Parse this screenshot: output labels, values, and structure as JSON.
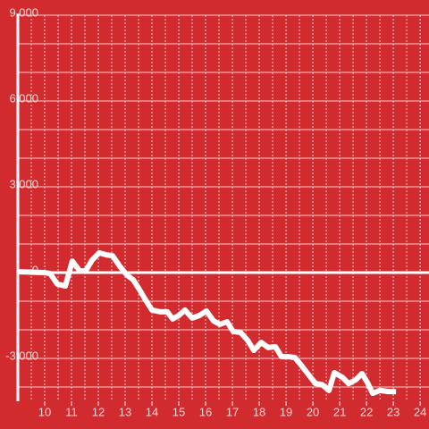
{
  "chart_data": {
    "type": "line",
    "xlim": [
      9,
      24.33
    ],
    "ylim": [
      -4500,
      9000
    ],
    "xticks": [
      10,
      11,
      12,
      13,
      14,
      15,
      16,
      17,
      18,
      19,
      20,
      21,
      22,
      23,
      24
    ],
    "yticks": [
      {
        "value": -3000,
        "label": "-3,000"
      },
      0,
      {
        "value": 3000,
        "label": "3,000"
      },
      {
        "value": 6000,
        "label": "6,000"
      },
      {
        "value": 9000,
        "label": "9,000"
      }
    ],
    "minor_xticks": [
      9.5,
      10,
      10.5,
      11,
      11.5,
      12,
      12.5,
      13,
      13.5,
      14,
      14.5,
      15,
      15.5,
      16,
      16.5,
      17,
      17.5,
      18,
      18.5,
      19,
      19.5,
      20,
      20.5,
      21,
      21.5,
      22,
      22.5,
      23,
      23.5,
      24
    ],
    "minor_yticks": [
      -4000,
      -3000,
      -2000,
      -1000,
      1000,
      2000,
      3000,
      4000,
      5000,
      6000,
      7000,
      8000,
      9000
    ],
    "grid": true,
    "background": "#d12b30",
    "series": [
      {
        "color": "#ffffff",
        "x": [
          9.0,
          9.97,
          10.2,
          10.47,
          10.77,
          11.03,
          11.3,
          11.53,
          11.77,
          12.03,
          12.3,
          12.53,
          12.8,
          13.07,
          13.3,
          13.53,
          13.77,
          14.0,
          14.3,
          14.57,
          14.77,
          15.0,
          15.23,
          15.5,
          15.77,
          16.03,
          16.3,
          16.53,
          16.8,
          17.03,
          17.3,
          17.57,
          17.8,
          18.07,
          18.33,
          18.6,
          18.83,
          19.07,
          19.33,
          19.6,
          19.83,
          20.1,
          20.33,
          20.6,
          20.8,
          21.1,
          21.33,
          21.6,
          21.83,
          22.03,
          22.23,
          22.5,
          22.83,
          23.1
        ],
        "values": [
          30,
          0,
          -30,
          -400,
          -470,
          400,
          60,
          60,
          440,
          690,
          620,
          590,
          220,
          -90,
          -250,
          -590,
          -970,
          -1310,
          -1370,
          -1370,
          -1620,
          -1500,
          -1310,
          -1590,
          -1500,
          -1340,
          -1690,
          -1810,
          -1720,
          -2060,
          -2090,
          -2370,
          -2720,
          -2440,
          -2620,
          -2590,
          -2940,
          -2940,
          -2970,
          -3280,
          -3560,
          -3880,
          -3910,
          -4120,
          -3500,
          -3660,
          -3880,
          -3750,
          -3530,
          -3840,
          -4220,
          -4120,
          -4160,
          -4160
        ]
      }
    ]
  }
}
